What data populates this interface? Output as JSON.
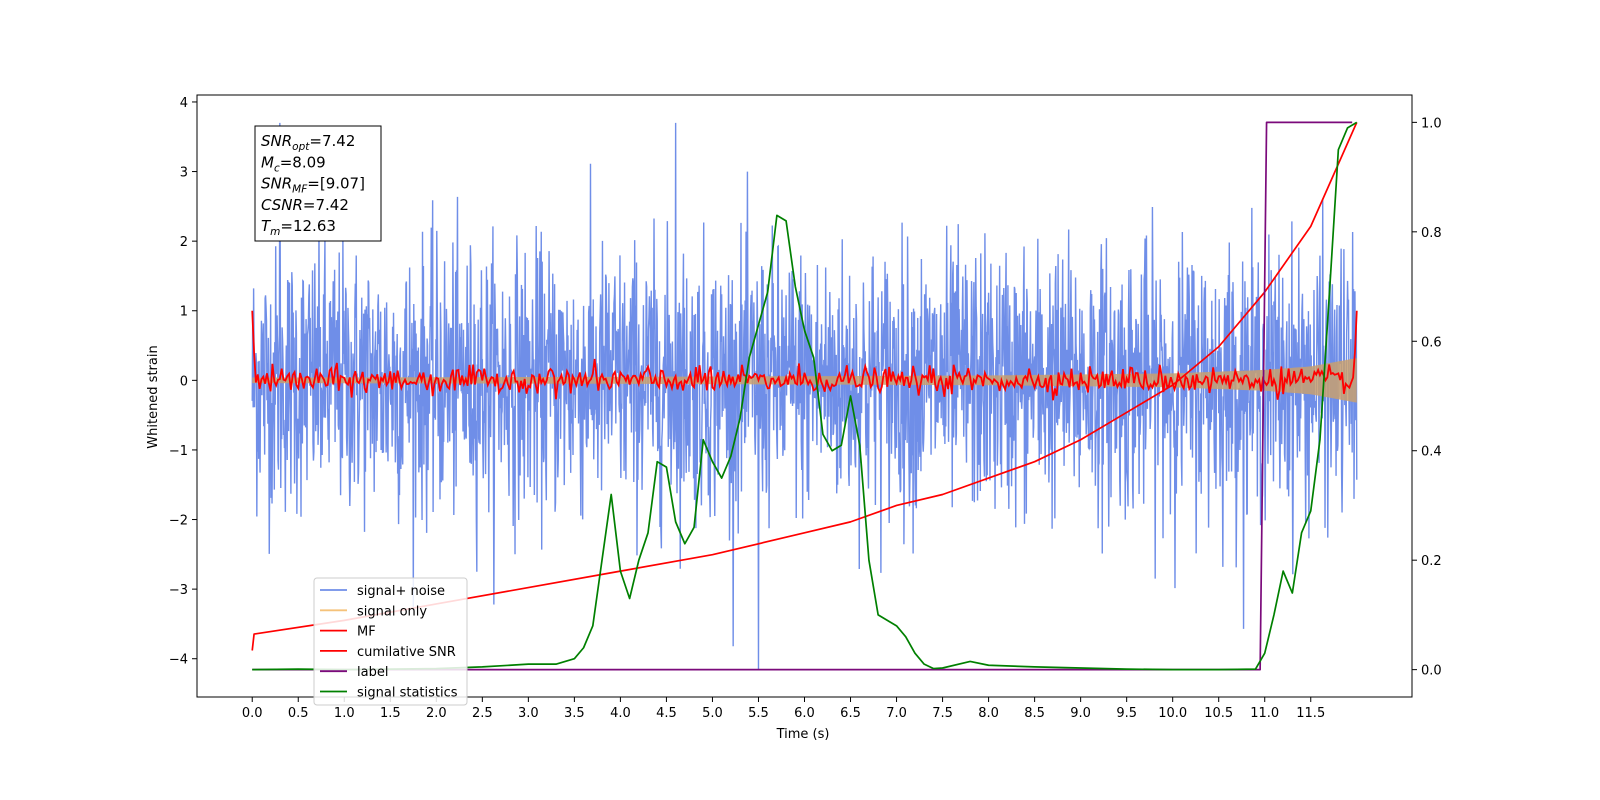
{
  "chart_data": {
    "type": "line",
    "title": "",
    "xlabel": "Time (s)",
    "ylabel_left": "Whitened strain",
    "ylabel_right": "",
    "xlim": [
      -0.6,
      12.6
    ],
    "ylim_left": [
      -4.55,
      4.1
    ],
    "ylim_right": [
      -0.05,
      1.05
    ],
    "x_ticks": [
      0.0,
      0.5,
      1.0,
      1.5,
      2.0,
      2.5,
      3.0,
      3.5,
      4.0,
      4.5,
      5.0,
      5.5,
      6.0,
      6.5,
      7.0,
      7.5,
      8.0,
      8.5,
      9.0,
      9.5,
      10.0,
      10.5,
      11.0,
      11.5
    ],
    "x_tick_labels": [
      "0.0",
      "0.5",
      "1.0",
      "1.5",
      "2.0",
      "2.5",
      "3.0",
      "3.5",
      "4.0",
      "4.5",
      "5.0",
      "5.5",
      "6.0",
      "6.5",
      "7.0",
      "7.5",
      "8.0",
      "8.5",
      "9.0",
      "9.5",
      "10.0",
      "10.5",
      "11.0",
      "11.5"
    ],
    "y_ticks_left": [
      -4,
      -3,
      -2,
      -1,
      0,
      1,
      2,
      3,
      4
    ],
    "y_tick_labels_left": [
      "−4",
      "−3",
      "−2",
      "−1",
      "0",
      "1",
      "2",
      "3",
      "4"
    ],
    "y_ticks_right": [
      0.0,
      0.2,
      0.4,
      0.6,
      0.8,
      1.0
    ],
    "y_tick_labels_right": [
      "0.0",
      "0.2",
      "0.4",
      "0.6",
      "0.8",
      "1.0"
    ],
    "grid": false,
    "legend_position": "lower-left",
    "series": [
      {
        "name": "signal+ noise",
        "axis": "left",
        "color": "#6f8ee8",
        "note_shape": "dense noise, amplitude ~1.4 std, extremes about 3.7 and -4.15",
        "t_range": [
          0.0,
          12.0
        ]
      },
      {
        "name": "signal only",
        "axis": "left",
        "color": "#f5a623",
        "t_range": [
          0.0,
          12.0
        ],
        "envelope_x": [
          0.0,
          4.0,
          8.0,
          10.0,
          11.0,
          11.5,
          12.0
        ],
        "envelope_y": [
          0.04,
          0.05,
          0.07,
          0.1,
          0.15,
          0.2,
          0.32
        ]
      },
      {
        "name": "MF",
        "axis": "left",
        "color": "#ff0000",
        "note_shape": "oscillating near 0 within about ±0.3, peaks to 1.0 at t=0 and t=12",
        "t_range": [
          0.0,
          12.0
        ]
      },
      {
        "name": "cumilative SNR",
        "axis": "right",
        "color": "#ff0000",
        "x": [
          0.0,
          0.02,
          1.0,
          2.0,
          3.0,
          4.0,
          5.0,
          6.0,
          6.5,
          7.0,
          7.5,
          8.0,
          8.5,
          9.0,
          9.5,
          10.0,
          10.5,
          11.0,
          11.5,
          12.0
        ],
        "y": [
          0.035,
          0.065,
          0.09,
          0.12,
          0.15,
          0.18,
          0.21,
          0.25,
          0.27,
          0.3,
          0.32,
          0.35,
          0.38,
          0.42,
          0.47,
          0.52,
          0.59,
          0.69,
          0.81,
          1.0
        ]
      },
      {
        "name": "label",
        "axis": "right",
        "color": "#7b0a7b",
        "x": [
          0.0,
          10.95,
          11.02,
          11.95
        ],
        "y": [
          0.0,
          0.0,
          1.0,
          1.0
        ]
      },
      {
        "name": "signal statistics",
        "axis": "right",
        "color": "#008000",
        "x": [
          0.0,
          0.5,
          1.0,
          1.5,
          2.0,
          2.5,
          3.0,
          3.3,
          3.5,
          3.6,
          3.7,
          3.8,
          3.9,
          4.0,
          4.1,
          4.2,
          4.3,
          4.4,
          4.5,
          4.6,
          4.7,
          4.8,
          4.9,
          5.0,
          5.1,
          5.2,
          5.3,
          5.4,
          5.5,
          5.6,
          5.7,
          5.8,
          5.9,
          6.0,
          6.1,
          6.2,
          6.3,
          6.4,
          6.5,
          6.6,
          6.7,
          6.8,
          6.9,
          7.0,
          7.1,
          7.2,
          7.3,
          7.4,
          7.5,
          7.8,
          8.0,
          8.5,
          9.0,
          9.5,
          10.0,
          10.5,
          10.9,
          11.0,
          11.1,
          11.2,
          11.3,
          11.4,
          11.5,
          11.6,
          11.7,
          11.8,
          11.9,
          12.0
        ],
        "y": [
          0.0,
          0.001,
          0.0,
          0.001,
          0.002,
          0.005,
          0.01,
          0.01,
          0.02,
          0.04,
          0.08,
          0.2,
          0.32,
          0.18,
          0.13,
          0.2,
          0.25,
          0.38,
          0.37,
          0.27,
          0.23,
          0.26,
          0.42,
          0.38,
          0.35,
          0.39,
          0.46,
          0.57,
          0.63,
          0.69,
          0.83,
          0.82,
          0.7,
          0.62,
          0.57,
          0.43,
          0.4,
          0.41,
          0.5,
          0.41,
          0.2,
          0.1,
          0.09,
          0.08,
          0.06,
          0.03,
          0.01,
          0.002,
          0.003,
          0.015,
          0.008,
          0.005,
          0.003,
          0.001,
          0.0,
          0.0,
          0.001,
          0.03,
          0.1,
          0.18,
          0.14,
          0.25,
          0.29,
          0.42,
          0.68,
          0.95,
          0.99,
          1.0
        ]
      }
    ],
    "annotation": {
      "lines": [
        {
          "main": "SNR",
          "sub": "opt",
          "rest": "=7.42"
        },
        {
          "main": "M",
          "sub": "c",
          "rest": "=8.09"
        },
        {
          "main": "SNR",
          "sub": "MF",
          "rest": "=[9.07]"
        },
        {
          "main": "CSNR",
          "sub": "",
          "rest": "=7.42"
        },
        {
          "main": "T",
          "sub": "m",
          "rest": "=12.63"
        }
      ]
    },
    "legend": [
      "signal+ noise",
      "signal only",
      "MF",
      "cumilative SNR",
      "label",
      "signal statistics"
    ]
  }
}
